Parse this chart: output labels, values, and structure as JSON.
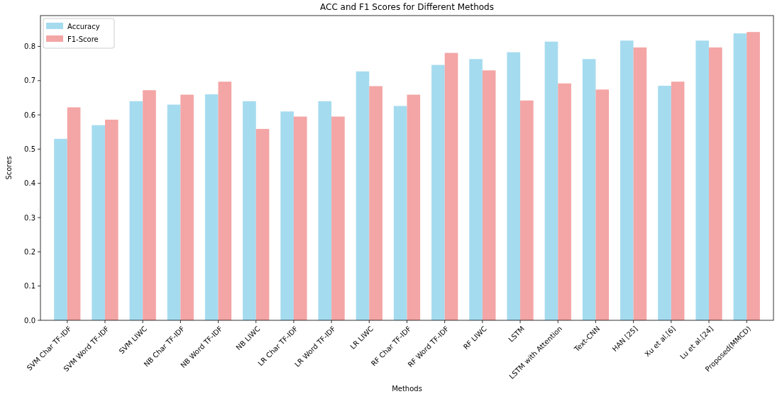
{
  "chart_data": {
    "type": "bar",
    "title": "ACC and F1 Scores for Different Methods",
    "xlabel": "Methods",
    "ylabel": "Scores",
    "categories": [
      "SVM Char TF-IDF",
      "SVM Word TF-IDF",
      "SVM LIWC",
      "NB Char TF-IDF",
      "NB Word TF-IDF",
      "NB LIWC",
      "LR Char TF-IDF",
      "LR Word TF-IDF",
      "LR LIWC",
      "RF Char TF-IDF",
      "RF Word TF-IDF",
      "RF LIWC",
      "LSTM",
      "LSTM with Attention",
      "Text-CNN",
      "HAN [25]",
      "Xu et al.[6]",
      "Lu et al.[24]",
      "Proposed(MMCD)"
    ],
    "series": [
      {
        "name": "Accuracy",
        "color": "#a5dbef",
        "values": [
          0.53,
          0.57,
          0.64,
          0.63,
          0.66,
          0.64,
          0.61,
          0.64,
          0.727,
          0.626,
          0.746,
          0.763,
          0.783,
          0.814,
          0.763,
          0.817,
          0.685,
          0.817,
          0.838
        ]
      },
      {
        "name": "F1-Score",
        "color": "#f4a5a5",
        "values": [
          0.622,
          0.586,
          0.672,
          0.659,
          0.697,
          0.559,
          0.595,
          0.595,
          0.684,
          0.659,
          0.781,
          0.73,
          0.642,
          0.692,
          0.674,
          0.797,
          0.697,
          0.797,
          0.842
        ]
      }
    ],
    "ylim": [
      0,
      0.89
    ],
    "yticks": [
      {
        "value": 0,
        "label": "0.0"
      },
      {
        "value": 0.1,
        "label": "0.1"
      },
      {
        "value": 0.2,
        "label": "0.2"
      },
      {
        "value": 0.3,
        "label": "0.3"
      },
      {
        "value": 0.4,
        "label": "0.4"
      },
      {
        "value": 0.5,
        "label": "0.5"
      },
      {
        "value": 0.6,
        "label": "0.6"
      },
      {
        "value": 0.7,
        "label": "0.7"
      },
      {
        "value": 0.8,
        "label": "0.8"
      }
    ],
    "legend": "top left"
  }
}
